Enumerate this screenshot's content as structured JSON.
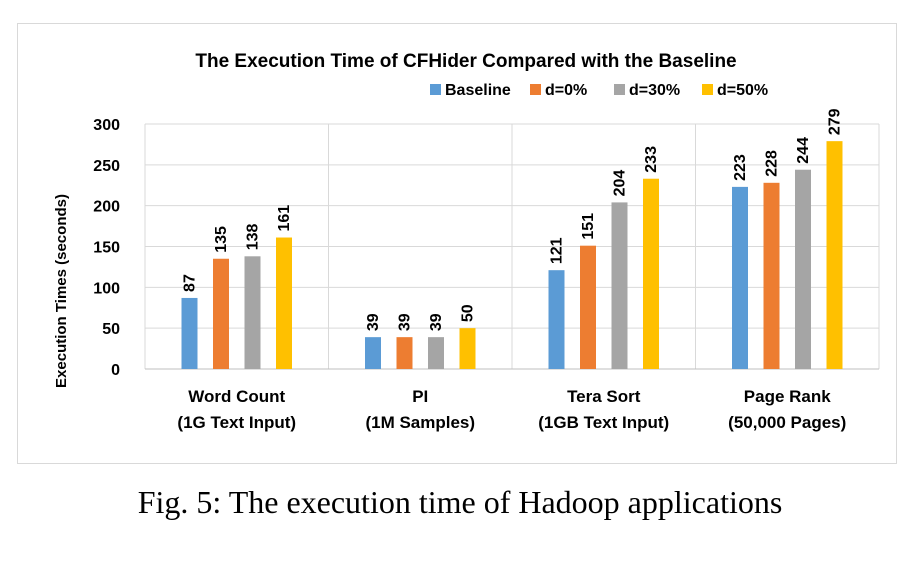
{
  "chart_data": {
    "type": "bar",
    "title": "The Execution Time of CFHider Compared with the Baseline",
    "ylabel": "Execution Times (seconds)",
    "xlabel": "",
    "ylim": [
      0,
      300
    ],
    "yticks": [
      0,
      50,
      100,
      150,
      200,
      250,
      300
    ],
    "grid": true,
    "legend_position": "top",
    "categories": [
      [
        "Word Count",
        "(1G Text Input)"
      ],
      [
        "PI",
        "(1M Samples)"
      ],
      [
        "Tera Sort",
        "(1GB Text Input)"
      ],
      [
        "Page Rank",
        "(50,000 Pages)"
      ]
    ],
    "series": [
      {
        "name": "Baseline",
        "color": "#5b9bd5",
        "values": [
          87,
          39,
          121,
          223
        ]
      },
      {
        "name": "d=0%",
        "color": "#ed7d31",
        "values": [
          135,
          39,
          151,
          228
        ]
      },
      {
        "name": "d=30%",
        "color": "#a5a5a5",
        "values": [
          138,
          39,
          204,
          244
        ]
      },
      {
        "name": "d=50%",
        "color": "#ffc000",
        "values": [
          161,
          50,
          233,
          279
        ]
      }
    ],
    "data_labels": true
  },
  "caption": "Fig. 5: The execution time of Hadoop applications"
}
